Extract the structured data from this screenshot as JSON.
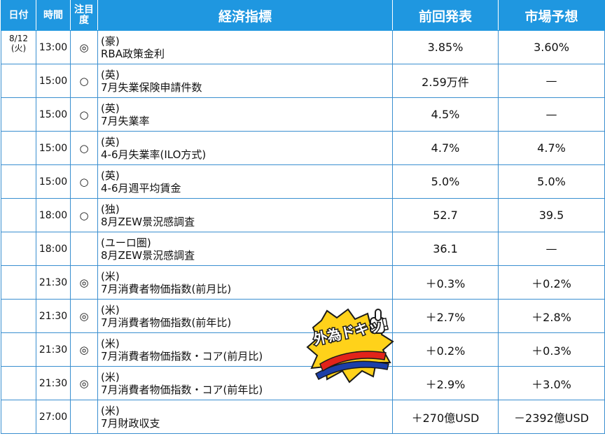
{
  "header": {
    "date": "日付",
    "time": "時間",
    "importance": "注目度",
    "indicator": "経済指標",
    "previous": "前回発表",
    "forecast": "市場予想"
  },
  "rows": [
    {
      "date": "8/12\n(火)",
      "time": "13:00",
      "mark": "◎",
      "region": "(豪)",
      "name": "RBA政策金利",
      "previous": "3.85%",
      "forecast": "3.60%"
    },
    {
      "date": "",
      "time": "15:00",
      "mark": "○",
      "region": "(英)",
      "name": "7月失業保険申請件数",
      "previous": "2.59万件",
      "forecast": "—"
    },
    {
      "date": "",
      "time": "15:00",
      "mark": "○",
      "region": "(英)",
      "name": "7月失業率",
      "previous": "4.5%",
      "forecast": "—"
    },
    {
      "date": "",
      "time": "15:00",
      "mark": "○",
      "region": "(英)",
      "name": "4-6月失業率(ILO方式)",
      "previous": "4.7%",
      "forecast": "4.7%"
    },
    {
      "date": "",
      "time": "15:00",
      "mark": "○",
      "region": "(英)",
      "name": "4-6月週平均賃金",
      "previous": "5.0%",
      "forecast": "5.0%"
    },
    {
      "date": "",
      "time": "18:00",
      "mark": "○",
      "region": "(独)",
      "name": "8月ZEW景況感調査",
      "previous": "52.7",
      "forecast": "39.5"
    },
    {
      "date": "",
      "time": "18:00",
      "mark": "",
      "region": "(ユーロ圏)",
      "name": "8月ZEW景況感調査",
      "previous": "36.1",
      "forecast": "—"
    },
    {
      "date": "",
      "time": "21:30",
      "mark": "◎",
      "region": "(米)",
      "name": "7月消費者物価指数(前月比)",
      "previous": "＋0.3%",
      "forecast": "＋0.2%"
    },
    {
      "date": "",
      "time": "21:30",
      "mark": "◎",
      "region": "(米)",
      "name": "7月消費者物価指数(前年比)",
      "previous": "＋2.7%",
      "forecast": "＋2.8%"
    },
    {
      "date": "",
      "time": "21:30",
      "mark": "◎",
      "region": "(米)",
      "name": "7月消費者物価指数・コア(前月比)",
      "previous": "＋0.2%",
      "forecast": "＋0.3%"
    },
    {
      "date": "",
      "time": "21:30",
      "mark": "◎",
      "region": "(米)",
      "name": "7月消費者物価指数・コア(前年比)",
      "previous": "＋2.9%",
      "forecast": "＋3.0%"
    },
    {
      "date": "",
      "time": "27:00",
      "mark": "",
      "region": "(米)",
      "name": "7月財政収支",
      "previous": "＋270億USD",
      "forecast": "－2392億USD"
    }
  ],
  "logo": {
    "text": "外為ドキッ!",
    "icon": "thumbs-up-mascot-icon",
    "colors": {
      "yellow": "#ffd21a",
      "red": "#e2231a",
      "blue": "#1c3fa8",
      "outline": "#1a1a1a"
    }
  },
  "colors": {
    "header_bg": "#1f97e0",
    "header_text": "#ffffff",
    "grid": "#3a8fd0"
  }
}
